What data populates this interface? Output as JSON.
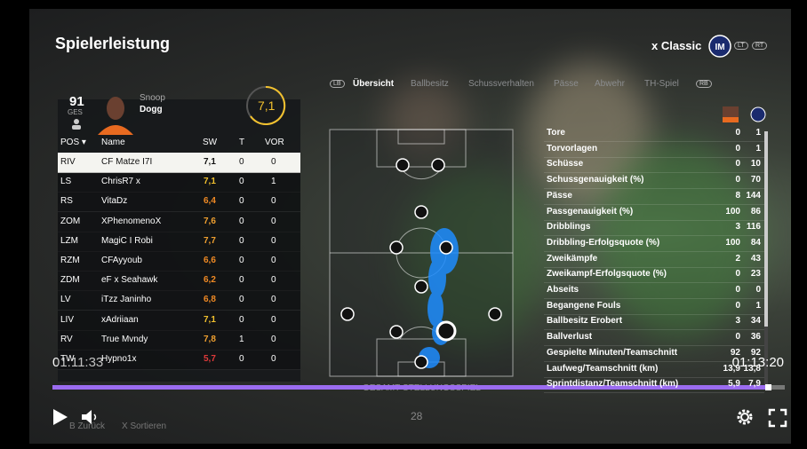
{
  "header": {
    "title": "Spielerleistung",
    "team": "x Classic",
    "lt": "LT",
    "rt": "RT"
  },
  "player": {
    "rating": "91",
    "rating_label": "GES",
    "first_name": "Snoop",
    "last_name": "Dogg",
    "score": "7,1"
  },
  "table": {
    "columns": [
      "POS",
      "Name",
      "SW",
      "T",
      "VOR"
    ],
    "rows": [
      {
        "pos": "RIV",
        "name": "CF Matze I7I",
        "sw": "7,1",
        "t": 0,
        "vor": 0,
        "color": "#111111"
      },
      {
        "pos": "LS",
        "name": "ChrisR7 x",
        "sw": "7,1",
        "t": 0,
        "vor": 1,
        "color": "#f2c12e"
      },
      {
        "pos": "RS",
        "name": "VitaDz",
        "sw": "6,4",
        "t": 0,
        "vor": 0,
        "color": "#f08a24"
      },
      {
        "pos": "ZOM",
        "name": "XPhenomenoX",
        "sw": "7,6",
        "t": 0,
        "vor": 0,
        "color": "#f0a030"
      },
      {
        "pos": "LZM",
        "name": "MagiC I Robi",
        "sw": "7,7",
        "t": 0,
        "vor": 0,
        "color": "#f0a030"
      },
      {
        "pos": "RZM",
        "name": "CFAyyoub",
        "sw": "6,6",
        "t": 0,
        "vor": 0,
        "color": "#f08a24"
      },
      {
        "pos": "ZDM",
        "name": "eF x Seahawk",
        "sw": "6,2",
        "t": 0,
        "vor": 0,
        "color": "#f08a24"
      },
      {
        "pos": "LV",
        "name": "iTzz Janinho",
        "sw": "6,8",
        "t": 0,
        "vor": 0,
        "color": "#f08a24"
      },
      {
        "pos": "LIV",
        "name": "xAdriiaan",
        "sw": "7,1",
        "t": 0,
        "vor": 0,
        "color": "#f2c12e"
      },
      {
        "pos": "RV",
        "name": "True Mvndy",
        "sw": "7,8",
        "t": 1,
        "vor": 0,
        "color": "#f0a030"
      },
      {
        "pos": "TW",
        "name": "Hypno1x",
        "sw": "5,7",
        "t": 0,
        "vor": 0,
        "color": "#e03a3a"
      }
    ]
  },
  "tabs": {
    "lb": "LB",
    "items": [
      "Übersicht",
      "Ballbesitz",
      "Schussverhalten",
      "Pässe",
      "Abwehr",
      "TH-Spiel"
    ],
    "rb": "RB"
  },
  "stats": [
    {
      "label": "Tore",
      "a": "0",
      "b": "1"
    },
    {
      "label": "Torvorlagen",
      "a": "0",
      "b": "1"
    },
    {
      "label": "Schüsse",
      "a": "0",
      "b": "10"
    },
    {
      "label": "Schussgenauigkeit (%)",
      "a": "0",
      "b": "70"
    },
    {
      "label": "Pässe",
      "a": "8",
      "b": "144"
    },
    {
      "label": "Passgenauigkeit (%)",
      "a": "100",
      "b": "86"
    },
    {
      "label": "Dribblings",
      "a": "3",
      "b": "116"
    },
    {
      "label": "Dribbling-Erfolgsquote (%)",
      "a": "100",
      "b": "84"
    },
    {
      "label": "Zweikämpfe",
      "a": "2",
      "b": "43"
    },
    {
      "label": "Zweikampf-Erfolgsquote (%)",
      "a": "0",
      "b": "23"
    },
    {
      "label": "Abseits",
      "a": "0",
      "b": "0"
    },
    {
      "label": "Begangene Fouls",
      "a": "0",
      "b": "1"
    },
    {
      "label": "Ballbesitz Erobert",
      "a": "3",
      "b": "34"
    },
    {
      "label": "Ballverlust",
      "a": "0",
      "b": "36"
    },
    {
      "label": "Gespielte Minuten/Teamschnitt",
      "a": "92",
      "b": "92"
    },
    {
      "label": "Laufweg/Teamschnitt (km)",
      "a": "13,9",
      "b": "13,8"
    },
    {
      "label": "Sprintdistanz/Teamschnitt (km)",
      "a": "5,9",
      "b": "7,9"
    }
  ],
  "pitch": {
    "label": "GESAMT-STELLUNGSSPIEL",
    "value": "28"
  },
  "footer": {
    "back_key": "B",
    "back": "Zurück",
    "sort_key": "X",
    "sort": "Sortieren"
  },
  "video": {
    "current": "01:11:33",
    "duration": "01:13:20"
  }
}
